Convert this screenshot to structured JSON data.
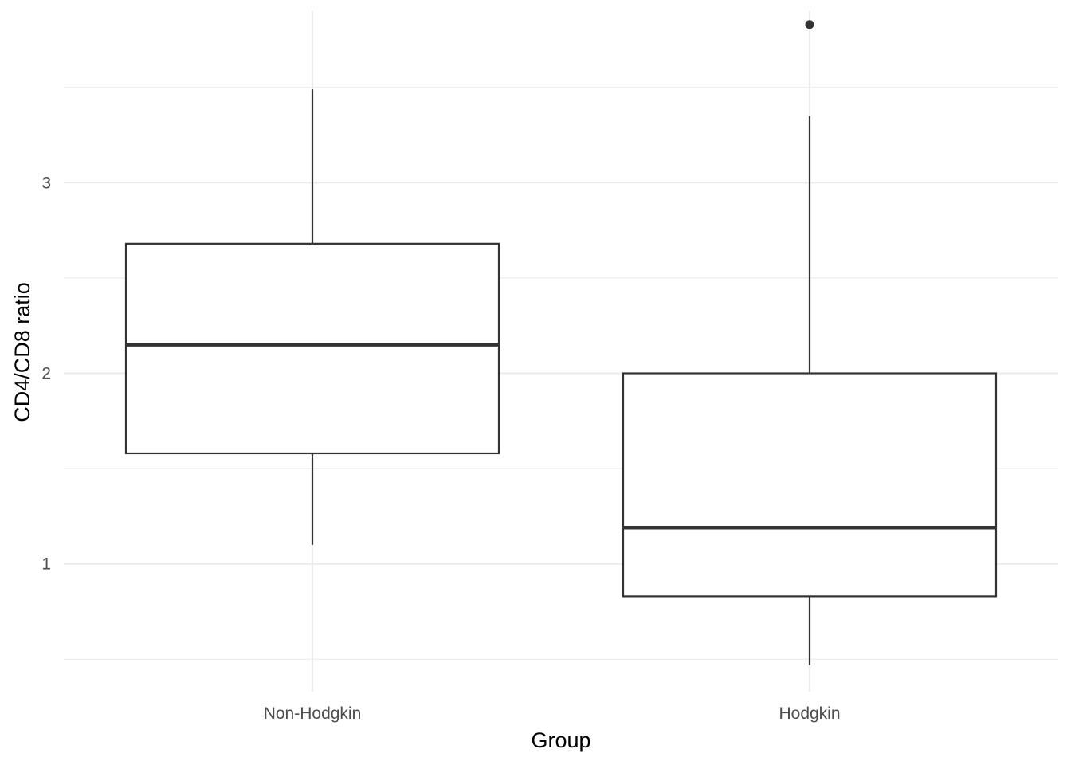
{
  "chart_data": {
    "type": "box",
    "xlabel": "Group",
    "ylabel": "CD4/CD8 ratio",
    "categories": [
      "Non-Hodgkin",
      "Hodgkin"
    ],
    "y_ticks": [
      1,
      2,
      3
    ],
    "y_tick_labels": [
      "1",
      "2",
      "3"
    ],
    "ylim": [
      0.33,
      3.9
    ],
    "grid": true,
    "legend": "none",
    "boxes": [
      {
        "group": "Non-Hodgkin",
        "whisker_low": 1.1,
        "q1": 1.58,
        "median": 2.15,
        "q3": 2.68,
        "whisker_high": 3.49,
        "outliers": []
      },
      {
        "group": "Hodgkin",
        "whisker_low": 0.47,
        "q1": 0.83,
        "median": 1.19,
        "q3": 2.0,
        "whisker_high": 3.35,
        "outliers": [
          3.83
        ]
      }
    ],
    "colors": {
      "box_line": "#333333",
      "box_fill": "#ffffff",
      "grid": "#ebebeb"
    }
  }
}
